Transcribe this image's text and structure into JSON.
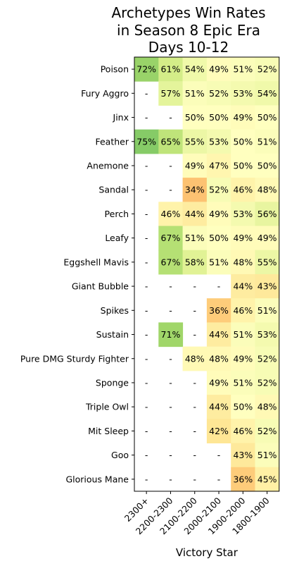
{
  "chart_data": {
    "type": "heatmap",
    "title": "Archetypes Win Rates\nin Season 8 Epic Era\nDays 10-12",
    "xlabel": "Victory Star",
    "ylabel": "",
    "columns": [
      "2300+",
      "2200-2300",
      "2100-2200",
      "2000-2100",
      "1900-2000",
      "1800-1900"
    ],
    "rows": [
      "Poison",
      "Fury Aggro",
      "Jinx",
      "Feather",
      "Anemone",
      "Sandal",
      "Perch",
      "Leafy",
      "Eggshell Mavis",
      "Giant Bubble",
      "Spikes",
      "Sustain",
      "Pure DMG Sturdy Fighter",
      "Sponge",
      "Triple Owl",
      "Mit Sleep",
      "Goo",
      "Glorious Mane"
    ],
    "values": [
      [
        72,
        61,
        54,
        49,
        51,
        52
      ],
      [
        null,
        57,
        51,
        52,
        53,
        54
      ],
      [
        null,
        null,
        50,
        50,
        49,
        50
      ],
      [
        75,
        65,
        55,
        53,
        50,
        51
      ],
      [
        null,
        null,
        49,
        47,
        50,
        50
      ],
      [
        null,
        null,
        34,
        52,
        46,
        48
      ],
      [
        null,
        46,
        44,
        49,
        53,
        56
      ],
      [
        null,
        67,
        51,
        50,
        49,
        49
      ],
      [
        null,
        67,
        58,
        51,
        48,
        55
      ],
      [
        null,
        null,
        null,
        null,
        44,
        43
      ],
      [
        null,
        null,
        null,
        36,
        46,
        51
      ],
      [
        null,
        71,
        null,
        44,
        51,
        53
      ],
      [
        null,
        null,
        48,
        48,
        49,
        52
      ],
      [
        null,
        null,
        null,
        49,
        51,
        52
      ],
      [
        null,
        null,
        null,
        44,
        50,
        48
      ],
      [
        null,
        null,
        null,
        42,
        46,
        52
      ],
      [
        null,
        null,
        null,
        null,
        43,
        51
      ],
      [
        null,
        null,
        null,
        null,
        36,
        45
      ]
    ],
    "missing_label": "-",
    "value_suffix": "%",
    "colormap": "RdYlGn",
    "color_range": [
      0,
      100
    ]
  }
}
